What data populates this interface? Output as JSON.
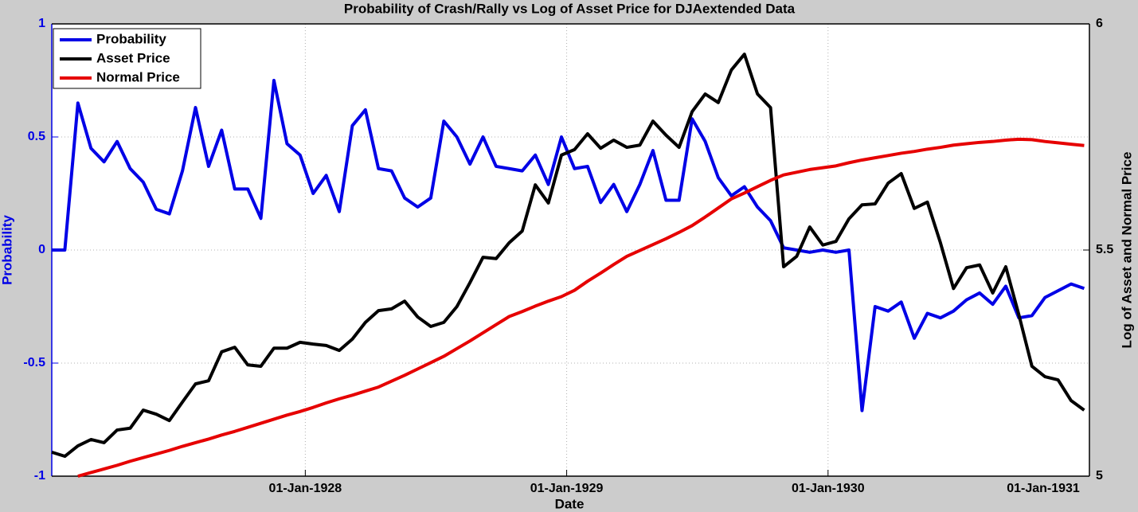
{
  "chart_data": {
    "type": "line",
    "title": "Probability of Crash/Rally vs Log of Asset Price for DJAextended Data",
    "xlabel": "Date",
    "ylabel": "Probability",
    "y2label": "Log of Asset and Normal Price",
    "x": [
      1927.03,
      1927.08,
      1927.13,
      1927.18,
      1927.23,
      1927.28,
      1927.33,
      1927.38,
      1927.43,
      1927.48,
      1927.53,
      1927.58,
      1927.63,
      1927.68,
      1927.73,
      1927.78,
      1927.83,
      1927.88,
      1927.93,
      1927.98,
      1928.03,
      1928.08,
      1928.13,
      1928.18,
      1928.23,
      1928.28,
      1928.33,
      1928.38,
      1928.43,
      1928.48,
      1928.53,
      1928.58,
      1928.63,
      1928.68,
      1928.73,
      1928.78,
      1928.83,
      1928.88,
      1928.93,
      1928.98,
      1929.03,
      1929.08,
      1929.13,
      1929.18,
      1929.23,
      1929.28,
      1929.33,
      1929.38,
      1929.43,
      1929.48,
      1929.53,
      1929.58,
      1929.63,
      1929.68,
      1929.73,
      1929.78,
      1929.83,
      1929.88,
      1929.93,
      1929.98,
      1930.03,
      1930.08,
      1930.13,
      1930.18,
      1930.23,
      1930.28,
      1930.33,
      1930.38,
      1930.43,
      1930.48,
      1930.53,
      1930.58,
      1930.63,
      1930.68,
      1930.73,
      1930.78,
      1930.83,
      1930.88,
      1930.93,
      1930.98
    ],
    "series": [
      {
        "name": "Probability",
        "color": "#0000e6",
        "axis": "y",
        "values": [
          0,
          0,
          0.65,
          0.45,
          0.39,
          0.48,
          0.36,
          0.3,
          0.18,
          0.16,
          0.35,
          0.63,
          0.37,
          0.53,
          0.27,
          0.27,
          0.14,
          0.75,
          0.47,
          0.42,
          0.25,
          0.33,
          0.17,
          0.55,
          0.62,
          0.36,
          0.35,
          0.23,
          0.19,
          0.23,
          0.57,
          0.5,
          0.38,
          0.5,
          0.37,
          0.36,
          0.35,
          0.42,
          0.29,
          0.5,
          0.36,
          0.37,
          0.21,
          0.29,
          0.17,
          0.29,
          0.44,
          0.22,
          0.22,
          0.58,
          0.48,
          0.32,
          0.24,
          0.28,
          0.19,
          0.13,
          0.01,
          0,
          -0.01,
          0,
          -0.01,
          0,
          -0.71,
          -0.25,
          -0.27,
          -0.23,
          -0.39,
          -0.28,
          -0.3,
          -0.27,
          -0.22,
          -0.19,
          -0.24,
          -0.16,
          -0.3,
          -0.29,
          -0.21,
          -0.18,
          -0.15,
          -0.17
        ]
      },
      {
        "name": "Asset Price",
        "color": "#000000",
        "axis": "y2",
        "values": [
          5.053,
          5.044,
          5.067,
          5.081,
          5.074,
          5.102,
          5.106,
          5.146,
          5.137,
          5.123,
          5.164,
          5.204,
          5.211,
          5.275,
          5.285,
          5.246,
          5.243,
          5.283,
          5.283,
          5.296,
          5.292,
          5.289,
          5.278,
          5.303,
          5.34,
          5.366,
          5.37,
          5.387,
          5.352,
          5.331,
          5.34,
          5.375,
          5.428,
          5.484,
          5.481,
          5.516,
          5.542,
          5.644,
          5.604,
          5.71,
          5.722,
          5.757,
          5.725,
          5.743,
          5.727,
          5.732,
          5.785,
          5.754,
          5.727,
          5.806,
          5.845,
          5.826,
          5.898,
          5.933,
          5.845,
          5.815,
          5.463,
          5.486,
          5.551,
          5.511,
          5.519,
          5.569,
          5.6,
          5.602,
          5.648,
          5.669,
          5.592,
          5.606,
          5.516,
          5.415,
          5.461,
          5.467,
          5.405,
          5.463,
          5.357,
          5.243,
          5.22,
          5.213,
          5.167,
          5.146
        ]
      },
      {
        "name": "Normal Price",
        "color": "#e60000",
        "axis": "y2",
        "values": [
          null,
          null,
          5.0,
          5.008,
          5.016,
          5.024,
          5.033,
          5.041,
          5.049,
          5.057,
          5.066,
          5.074,
          5.082,
          5.091,
          5.099,
          5.108,
          5.117,
          5.126,
          5.135,
          5.143,
          5.152,
          5.162,
          5.171,
          5.179,
          5.188,
          5.197,
          5.21,
          5.223,
          5.237,
          5.251,
          5.265,
          5.282,
          5.299,
          5.317,
          5.335,
          5.353,
          5.364,
          5.376,
          5.387,
          5.397,
          5.411,
          5.431,
          5.449,
          5.468,
          5.486,
          5.499,
          5.512,
          5.525,
          5.539,
          5.554,
          5.573,
          5.593,
          5.613,
          5.626,
          5.64,
          5.654,
          5.666,
          5.672,
          5.678,
          5.682,
          5.686,
          5.693,
          5.699,
          5.704,
          5.709,
          5.714,
          5.718,
          5.723,
          5.727,
          5.732,
          5.735,
          5.738,
          5.74,
          5.743,
          5.745,
          5.744,
          5.74,
          5.737,
          5.734,
          5.731
        ]
      }
    ],
    "xlim": [
      1927.03,
      1931.0
    ],
    "xticks": [
      {
        "value": 1928,
        "label": "01-Jan-1928"
      },
      {
        "value": 1929,
        "label": "01-Jan-1929"
      },
      {
        "value": 1930,
        "label": "01-Jan-1930"
      },
      {
        "value": 1931,
        "label": "01-Jan-1931"
      }
    ],
    "ylim": [
      -1,
      1
    ],
    "yticks": [
      -1,
      -0.5,
      0,
      0.5,
      1
    ],
    "y2lim": [
      5,
      6
    ],
    "y2ticks": [
      5,
      5.5,
      6
    ],
    "ylabel_color": "#0000e6",
    "grid": true,
    "legend": "upper left"
  }
}
